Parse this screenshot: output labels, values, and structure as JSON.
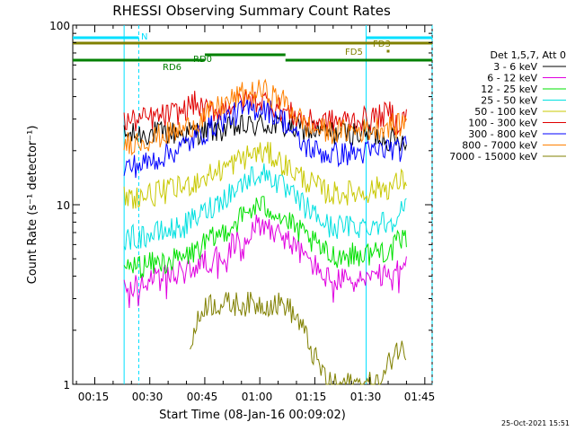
{
  "chart_data": {
    "type": "line",
    "title": "RHESSI Observing Summary Count Rates",
    "xlabel": "Start Time (08-Jan-16 00:09:02)",
    "ylabel": "Count Rate (s⁻¹ detector⁻¹)",
    "x_ticks": [
      "00:15",
      "00:30",
      "00:45",
      "01:00",
      "01:15",
      "01:30",
      "01:45"
    ],
    "y_ticks": [
      "1",
      "10",
      "100"
    ],
    "y_scale": "log",
    "ylim": [
      1,
      100
    ],
    "xlim_minutes_after_start": [
      0,
      98
    ],
    "legend_title": "Det 1,5,7, Att 0",
    "series": [
      {
        "name": "3 - 6 keV",
        "color": "#000000",
        "points": [
          [
            14,
            24
          ],
          [
            20,
            25
          ],
          [
            30,
            25
          ],
          [
            40,
            26
          ],
          [
            46,
            27
          ],
          [
            52,
            28
          ],
          [
            58,
            27
          ],
          [
            64,
            26
          ],
          [
            70,
            25
          ],
          [
            80,
            25
          ],
          [
            84,
            24
          ],
          [
            87,
            23
          ],
          [
            88,
            22
          ],
          [
            91,
            24
          ]
        ]
      },
      {
        "name": "6 - 12 keV",
        "color": "#e000e0",
        "points": [
          [
            14,
            3.5
          ],
          [
            20,
            3.7
          ],
          [
            30,
            4.2
          ],
          [
            40,
            5.2
          ],
          [
            46,
            6.5
          ],
          [
            50,
            7.7
          ],
          [
            54,
            7.5
          ],
          [
            58,
            6.5
          ],
          [
            64,
            5.0
          ],
          [
            70,
            3.8
          ],
          [
            80,
            3.8
          ],
          [
            84,
            4.0
          ],
          [
            87,
            3.8
          ],
          [
            88,
            4.2
          ],
          [
            91,
            4.5
          ]
        ]
      },
      {
        "name": "12 - 25 keV",
        "color": "#00e000",
        "points": [
          [
            14,
            4.5
          ],
          [
            20,
            4.6
          ],
          [
            30,
            5.0
          ],
          [
            40,
            6.8
          ],
          [
            46,
            8.5
          ],
          [
            50,
            9.8
          ],
          [
            54,
            9.6
          ],
          [
            58,
            8.2
          ],
          [
            64,
            6.5
          ],
          [
            70,
            5.2
          ],
          [
            80,
            5.3
          ],
          [
            84,
            5.6
          ],
          [
            87,
            5.5
          ],
          [
            88,
            6.0
          ],
          [
            91,
            6.5
          ]
        ]
      },
      {
        "name": "25 - 50 keV",
        "color": "#00e0e0",
        "points": [
          [
            14,
            6.5
          ],
          [
            20,
            6.7
          ],
          [
            30,
            7.5
          ],
          [
            40,
            10.5
          ],
          [
            46,
            13.0
          ],
          [
            50,
            15.0
          ],
          [
            54,
            14.5
          ],
          [
            58,
            12.0
          ],
          [
            64,
            9.5
          ],
          [
            70,
            7.5
          ],
          [
            80,
            7.6
          ],
          [
            84,
            8.0
          ],
          [
            87,
            8.0
          ],
          [
            88,
            9.0
          ],
          [
            91,
            9.5
          ]
        ]
      },
      {
        "name": "50 - 100 keV",
        "color": "#c8c800",
        "points": [
          [
            14,
            11
          ],
          [
            20,
            11.2
          ],
          [
            30,
            12.5
          ],
          [
            40,
            15.5
          ],
          [
            46,
            18
          ],
          [
            50,
            19.5
          ],
          [
            54,
            19
          ],
          [
            58,
            16.5
          ],
          [
            64,
            13.5
          ],
          [
            70,
            11.5
          ],
          [
            80,
            11.8
          ],
          [
            84,
            12.5
          ],
          [
            87,
            12.5
          ],
          [
            88,
            13
          ],
          [
            91,
            14
          ]
        ]
      },
      {
        "name": "100 - 300 keV",
        "color": "#e00000",
        "points": [
          [
            14,
            29
          ],
          [
            20,
            30
          ],
          [
            24,
            31
          ],
          [
            30,
            33
          ],
          [
            33,
            37
          ],
          [
            36,
            33
          ],
          [
            40,
            34
          ],
          [
            46,
            38
          ],
          [
            52,
            38
          ],
          [
            58,
            33
          ],
          [
            64,
            29
          ],
          [
            70,
            29
          ],
          [
            80,
            30
          ],
          [
            84,
            31
          ],
          [
            87,
            33
          ],
          [
            88,
            28
          ],
          [
            91,
            31
          ]
        ]
      },
      {
        "name": "300 - 800 keV",
        "color": "#0000ff",
        "points": [
          [
            14,
            16
          ],
          [
            20,
            17
          ],
          [
            30,
            21
          ],
          [
            40,
            29
          ],
          [
            46,
            33
          ],
          [
            52,
            35
          ],
          [
            58,
            29
          ],
          [
            62,
            22
          ],
          [
            66,
            20
          ],
          [
            70,
            19
          ],
          [
            80,
            19.5
          ],
          [
            84,
            20
          ],
          [
            87,
            21
          ],
          [
            88,
            19.5
          ],
          [
            91,
            21
          ]
        ]
      },
      {
        "name": "800 - 7000 keV",
        "color": "#ff8000",
        "points": [
          [
            14,
            22
          ],
          [
            20,
            23
          ],
          [
            30,
            26
          ],
          [
            40,
            35
          ],
          [
            46,
            41
          ],
          [
            52,
            43
          ],
          [
            58,
            37
          ],
          [
            64,
            27
          ],
          [
            70,
            25.5
          ],
          [
            80,
            26
          ],
          [
            84,
            27
          ],
          [
            87,
            28
          ],
          [
            88,
            27
          ],
          [
            91,
            29
          ]
        ]
      },
      {
        "name": "7000 - 15000 keV",
        "color": "#808000",
        "points": [
          [
            32,
            1.7
          ],
          [
            36,
            2.8
          ],
          [
            40,
            2.8
          ],
          [
            46,
            2.8
          ],
          [
            52,
            2.8
          ],
          [
            58,
            2.8
          ],
          [
            62,
            2.2
          ],
          [
            66,
            1.4
          ],
          [
            70,
            1.0
          ],
          [
            80,
            1.0
          ],
          [
            84,
            1.0
          ],
          [
            88,
            1.6
          ],
          [
            91,
            1.5
          ]
        ]
      }
    ],
    "flag_bars": [
      {
        "name": "RD6",
        "color": "#008000",
        "segments": [
          [
            0,
            36
          ],
          [
            58,
            98
          ]
        ]
      },
      {
        "name": "RD0",
        "color": "#008000",
        "segments": [
          [
            36,
            58
          ]
        ]
      },
      {
        "name": "FD5",
        "color": "#808000",
        "segments": [
          [
            0,
            98
          ]
        ]
      },
      {
        "name": "FD3",
        "color": "#808000",
        "segments": [
          [
            86,
            86
          ]
        ]
      },
      {
        "name": "N",
        "color": "#00e0ff",
        "segments": [
          [
            0,
            18
          ],
          [
            80,
            98
          ]
        ]
      }
    ],
    "vertical_lines": [
      {
        "color": "#00e0ff",
        "style": "solid",
        "x": [
          14,
          80
        ]
      },
      {
        "color": "#00e0ff",
        "style": "dashed",
        "x": [
          18,
          98
        ]
      }
    ]
  },
  "footer_date": "25-Oct-2021 15:51"
}
